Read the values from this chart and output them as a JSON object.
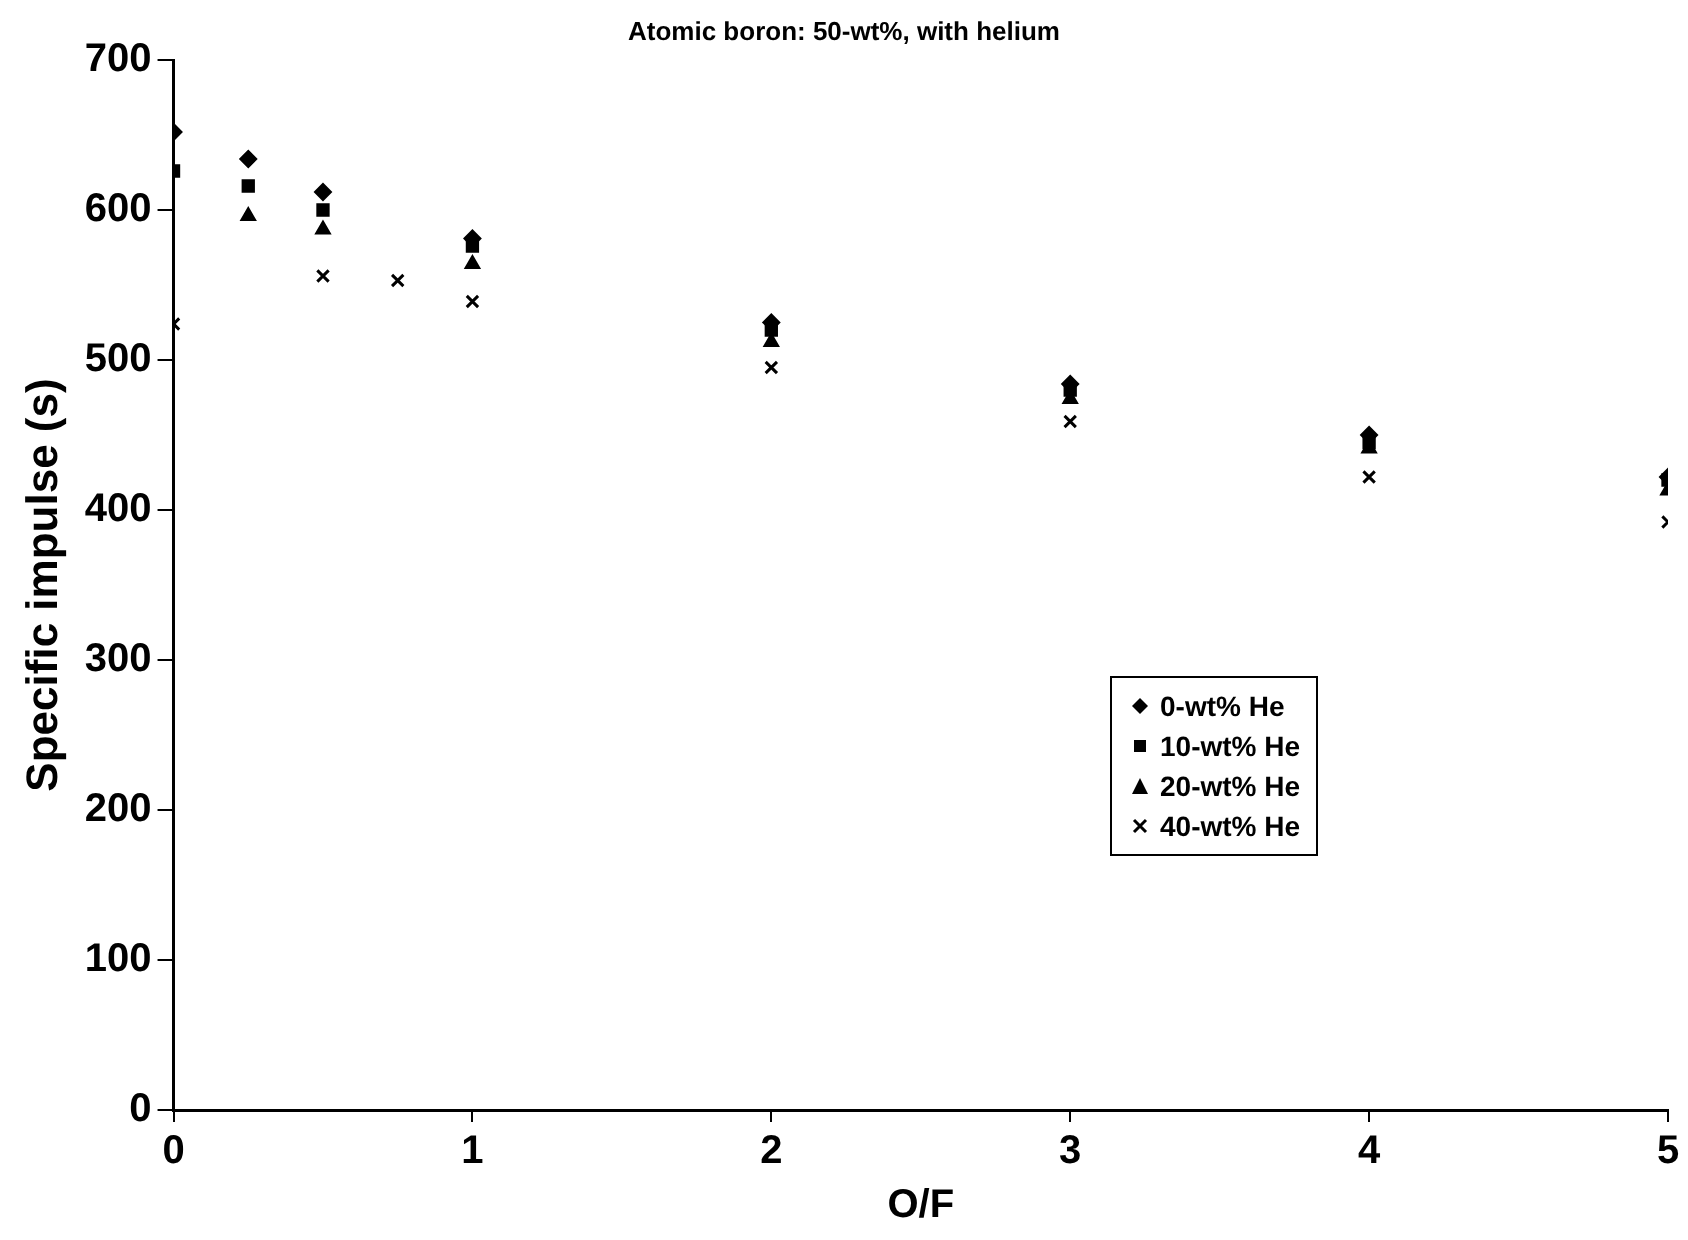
{
  "chart_data": {
    "type": "scatter",
    "title": "Atomic boron: 50-wt%, with helium",
    "xlabel": "O/F",
    "ylabel": "Specific impulse (s)",
    "xlim": [
      0,
      5
    ],
    "xticks": [
      0,
      1,
      2,
      3,
      4,
      5
    ],
    "ylim": [
      0,
      700
    ],
    "yticks": [
      0,
      100,
      200,
      300,
      400,
      500,
      600,
      700
    ],
    "grid": false,
    "legend": "right",
    "series": [
      {
        "name": "0-wt% He",
        "color": "#000000",
        "marker": "diamond",
        "x": [
          0,
          0.25,
          0.5,
          1,
          2,
          3,
          4,
          5
        ],
        "values": [
          652,
          634,
          612,
          581,
          525,
          484,
          450,
          422
        ]
      },
      {
        "name": "10-wt% He",
        "color": "#000000",
        "marker": "square",
        "x": [
          0,
          0.25,
          0.5,
          1,
          2,
          3,
          4,
          5
        ],
        "values": [
          626,
          616,
          600,
          576,
          520,
          480,
          445,
          420
        ]
      },
      {
        "name": "20-wt% He",
        "color": "#000000",
        "marker": "triangle",
        "x": [
          0.25,
          0.5,
          1,
          2,
          3,
          4,
          5
        ],
        "values": [
          596,
          587,
          564,
          512,
          474,
          441,
          413
        ]
      },
      {
        "name": "40-wt% He",
        "color": "#000000",
        "marker": "cross",
        "x": [
          0,
          0.5,
          0.75,
          1,
          2,
          3,
          4,
          5
        ],
        "values": [
          524,
          556,
          553,
          539,
          495,
          459,
          422,
          392
        ]
      }
    ]
  }
}
